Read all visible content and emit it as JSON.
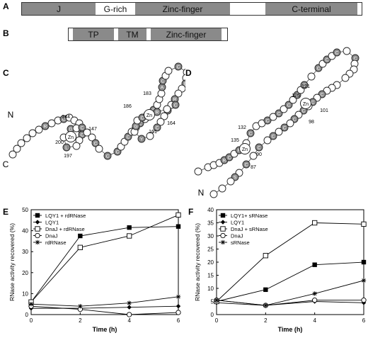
{
  "panels": {
    "A": "A",
    "B": "B",
    "C": "C",
    "D": "D",
    "E": "E",
    "F": "F"
  },
  "domainA": {
    "J": "J",
    "grich": "G-rich",
    "zinc": "Zinc-finger",
    "cterm": "C-terminal"
  },
  "domainB": {
    "tp": "TP",
    "tm": "TM",
    "zinc": "Zinc-finger"
  },
  "zincC": {
    "zn": "Zn",
    "n_term": "N",
    "c_term": "C",
    "positions": [
      "144",
      "147",
      "200",
      "197",
      "183",
      "186",
      "164",
      "161"
    ],
    "residues": [
      "R",
      "C",
      "C",
      "C",
      "L",
      "D",
      "C",
      "C",
      "C",
      "C",
      "C",
      "C",
      "S",
      "A",
      "C",
      "C",
      "E",
      "R",
      "S",
      "C",
      "Y",
      "G",
      "C",
      "R",
      "C",
      "R",
      "C",
      "G",
      "C",
      "S",
      "C",
      "V",
      "C",
      "C"
    ]
  },
  "zincD": {
    "zn": "Zn",
    "n_term": "N",
    "c_term": "C",
    "positions": [
      "125",
      "121",
      "101",
      "98",
      "132",
      "135",
      "90",
      "87"
    ],
    "residues": [
      "R",
      "C",
      "R",
      "C",
      "C",
      "C",
      "C",
      "C",
      "C",
      "C",
      "C",
      "C",
      "C",
      "C",
      "C",
      "C",
      "C",
      "C",
      "C",
      "C",
      "C",
      "S",
      "G",
      "C",
      "C",
      "C",
      "Y"
    ]
  },
  "chart_data": [
    {
      "type": "line",
      "xlabel": "Time (h)",
      "ylabel": "RNase activity recovered (%)",
      "xlim": [
        0,
        6
      ],
      "ylim": [
        0,
        50
      ],
      "xticks": [
        0,
        2,
        4,
        6
      ],
      "yticks": [
        0,
        10,
        20,
        30,
        40,
        50
      ],
      "x": [
        0,
        2,
        4,
        6
      ],
      "legend_position": "top-left",
      "series": [
        {
          "name": "LQY1 + rdRNase",
          "marker": "square-filled",
          "values": [
            6,
            37.5,
            41.5,
            42
          ]
        },
        {
          "name": "LQY1",
          "marker": "diamond-filled",
          "values": [
            3,
            3,
            3.5,
            4
          ]
        },
        {
          "name": "DnaJ + rdRNase",
          "marker": "square-open",
          "values": [
            6,
            32,
            37.5,
            47.5
          ]
        },
        {
          "name": "DnaJ",
          "marker": "circle-open",
          "values": [
            4,
            2.5,
            0,
            1
          ]
        },
        {
          "name": "rdRNase",
          "marker": "star",
          "values": [
            5,
            4,
            5.5,
            8.5
          ]
        }
      ]
    },
    {
      "type": "line",
      "xlabel": "Time (h)",
      "ylabel": "RNase activity recovered (%)",
      "xlim": [
        0,
        6
      ],
      "ylim": [
        0,
        40
      ],
      "xticks": [
        0,
        2,
        4,
        6
      ],
      "yticks": [
        0,
        5,
        10,
        15,
        20,
        25,
        30,
        35,
        40
      ],
      "x": [
        0,
        2,
        4,
        6
      ],
      "legend_position": "top-left",
      "series": [
        {
          "name": "LQY1+ sRNase",
          "marker": "square-filled",
          "values": [
            5,
            9.5,
            19,
            20
          ]
        },
        {
          "name": "LQY1",
          "marker": "diamond-filled",
          "values": [
            4.5,
            3.5,
            5,
            4.5
          ]
        },
        {
          "name": "DnaJ + sRNase",
          "marker": "square-open",
          "values": [
            5,
            22.5,
            35,
            34.5
          ]
        },
        {
          "name": "DnaJ",
          "marker": "circle-open",
          "values": [
            5.5,
            3.5,
            5.5,
            5.5
          ]
        },
        {
          "name": "sRNase",
          "marker": "star",
          "values": [
            5.5,
            3.5,
            8,
            13
          ]
        }
      ]
    }
  ]
}
